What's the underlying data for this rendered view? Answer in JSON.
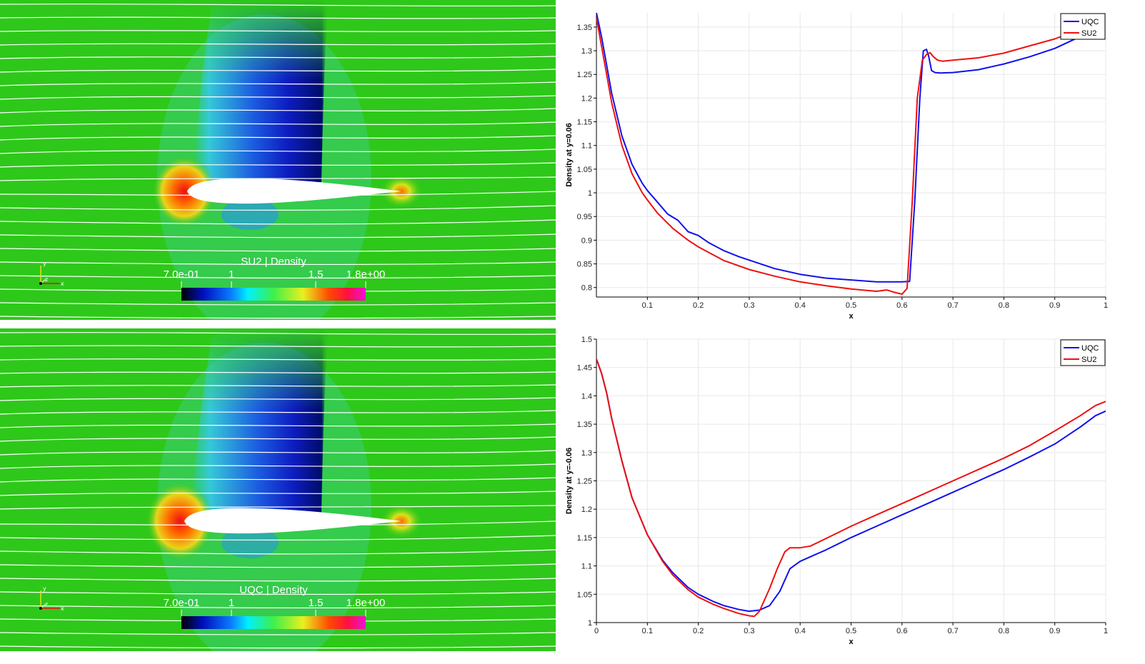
{
  "colors": {
    "uqc": "#1010ee",
    "su2": "#ee1010",
    "field_bg": "#2ec81a",
    "streamline": "#ffffff"
  },
  "fields": [
    {
      "colorbar_title": "SU2 | Density",
      "colorbar_ticks": [
        "7.0e-01",
        "1",
        "1.5",
        "1.8e+00"
      ]
    },
    {
      "colorbar_title": "UQC | Density",
      "colorbar_ticks": [
        "7.0e-01",
        "1",
        "1.5",
        "1.8e+00"
      ]
    }
  ],
  "orientation_axes": [
    "x",
    "y",
    "z"
  ],
  "chart_data": [
    {
      "type": "line",
      "xlabel": "x",
      "ylabel": "Density at y=0.06",
      "xlim": [
        0,
        1
      ],
      "ylim": [
        0.78,
        1.38
      ],
      "xticks": [
        "0.1",
        "0.2",
        "0.3",
        "0.4",
        "0.5",
        "0.6",
        "0.7",
        "0.8",
        "0.9",
        "1"
      ],
      "yticks": [
        "0.8",
        "0.85",
        "0.9",
        "0.95",
        "1",
        "1.05",
        "1.1",
        "1.15",
        "1.2",
        "1.25",
        "1.3",
        "1.35"
      ],
      "grid": true,
      "legend": "top-right",
      "series": [
        {
          "name": "UQC",
          "color": "#1010ee",
          "x": [
            0.0,
            0.01,
            0.02,
            0.03,
            0.05,
            0.07,
            0.09,
            0.1,
            0.12,
            0.14,
            0.16,
            0.17,
            0.18,
            0.2,
            0.22,
            0.25,
            0.28,
            0.3,
            0.35,
            0.4,
            0.45,
            0.5,
            0.55,
            0.6,
            0.615,
            0.625,
            0.635,
            0.642,
            0.648,
            0.652,
            0.658,
            0.665,
            0.675,
            0.7,
            0.75,
            0.8,
            0.85,
            0.9,
            0.95
          ],
          "y": [
            1.38,
            1.33,
            1.27,
            1.21,
            1.12,
            1.06,
            1.02,
            1.005,
            0.98,
            0.955,
            0.942,
            0.93,
            0.918,
            0.91,
            0.895,
            0.878,
            0.865,
            0.858,
            0.84,
            0.828,
            0.82,
            0.816,
            0.812,
            0.812,
            0.813,
            0.98,
            1.2,
            1.3,
            1.303,
            1.29,
            1.258,
            1.254,
            1.253,
            1.254,
            1.26,
            1.272,
            1.287,
            1.305,
            1.33
          ]
        },
        {
          "name": "SU2",
          "color": "#ee1010",
          "x": [
            0.0,
            0.01,
            0.02,
            0.03,
            0.05,
            0.07,
            0.09,
            0.1,
            0.12,
            0.15,
            0.18,
            0.2,
            0.25,
            0.3,
            0.35,
            0.4,
            0.45,
            0.5,
            0.55,
            0.57,
            0.585,
            0.6,
            0.61,
            0.62,
            0.63,
            0.64,
            0.648,
            0.655,
            0.662,
            0.67,
            0.68,
            0.7,
            0.75,
            0.8,
            0.85,
            0.9,
            0.95
          ],
          "y": [
            1.37,
            1.31,
            1.25,
            1.19,
            1.1,
            1.04,
            1.0,
            0.985,
            0.957,
            0.925,
            0.9,
            0.886,
            0.857,
            0.838,
            0.824,
            0.812,
            0.804,
            0.797,
            0.792,
            0.795,
            0.79,
            0.786,
            0.798,
            0.98,
            1.2,
            1.28,
            1.292,
            1.296,
            1.287,
            1.28,
            1.278,
            1.28,
            1.285,
            1.295,
            1.31,
            1.325,
            1.345
          ]
        }
      ]
    },
    {
      "type": "line",
      "xlabel": "x",
      "ylabel": "Density at y=-0.06",
      "xlim": [
        0,
        1
      ],
      "ylim": [
        1.0,
        1.5
      ],
      "xticks": [
        "0",
        "0.1",
        "0.2",
        "0.3",
        "0.4",
        "0.5",
        "0.6",
        "0.7",
        "0.8",
        "0.9",
        "1"
      ],
      "yticks": [
        "1",
        "1.05",
        "1.1",
        "1.15",
        "1.2",
        "1.25",
        "1.3",
        "1.35",
        "1.4",
        "1.45",
        "1.5"
      ],
      "grid": true,
      "legend": "top-right",
      "series": [
        {
          "name": "UQC",
          "color": "#1010ee",
          "x": [
            0.0,
            0.01,
            0.02,
            0.03,
            0.05,
            0.07,
            0.1,
            0.13,
            0.15,
            0.18,
            0.2,
            0.23,
            0.25,
            0.28,
            0.3,
            0.32,
            0.34,
            0.36,
            0.38,
            0.4,
            0.43,
            0.45,
            0.5,
            0.55,
            0.6,
            0.65,
            0.7,
            0.75,
            0.8,
            0.85,
            0.9,
            0.95,
            0.98,
            1.0
          ],
          "y": [
            1.465,
            1.44,
            1.405,
            1.36,
            1.285,
            1.22,
            1.155,
            1.11,
            1.088,
            1.062,
            1.05,
            1.037,
            1.03,
            1.023,
            1.02,
            1.022,
            1.03,
            1.055,
            1.095,
            1.108,
            1.12,
            1.128,
            1.15,
            1.17,
            1.19,
            1.21,
            1.23,
            1.25,
            1.27,
            1.292,
            1.315,
            1.345,
            1.365,
            1.373
          ]
        },
        {
          "name": "SU2",
          "color": "#ee1010",
          "x": [
            0.0,
            0.01,
            0.02,
            0.03,
            0.05,
            0.07,
            0.1,
            0.13,
            0.15,
            0.18,
            0.2,
            0.23,
            0.25,
            0.28,
            0.3,
            0.31,
            0.32,
            0.34,
            0.355,
            0.37,
            0.38,
            0.4,
            0.42,
            0.45,
            0.5,
            0.55,
            0.6,
            0.65,
            0.7,
            0.75,
            0.8,
            0.85,
            0.9,
            0.95,
            0.98,
            1.0
          ],
          "y": [
            1.465,
            1.44,
            1.405,
            1.36,
            1.285,
            1.22,
            1.155,
            1.108,
            1.084,
            1.058,
            1.045,
            1.032,
            1.025,
            1.016,
            1.012,
            1.011,
            1.02,
            1.06,
            1.095,
            1.125,
            1.132,
            1.132,
            1.135,
            1.148,
            1.17,
            1.19,
            1.21,
            1.23,
            1.25,
            1.27,
            1.29,
            1.312,
            1.338,
            1.365,
            1.383,
            1.39
          ]
        }
      ]
    }
  ]
}
